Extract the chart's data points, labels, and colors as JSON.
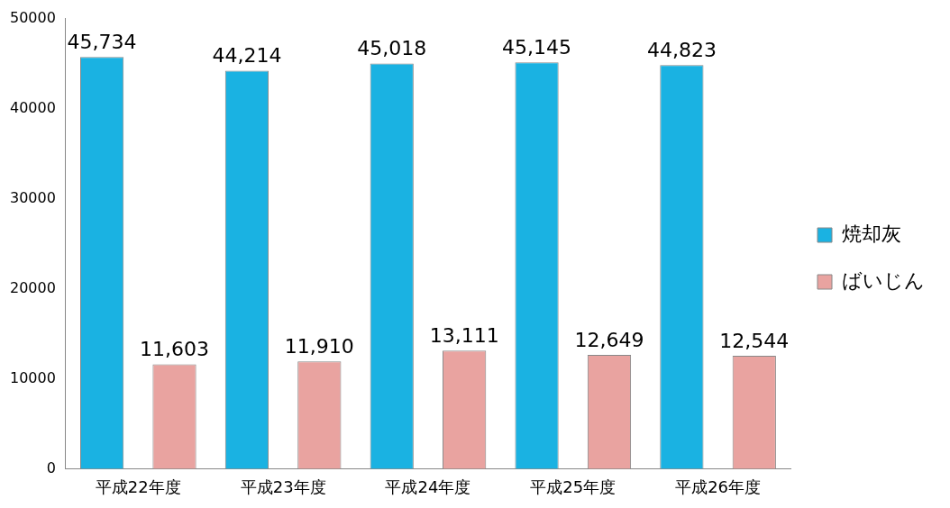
{
  "chart_data": {
    "type": "bar",
    "categories": [
      "平成22年度",
      "平成23年度",
      "平成24年度",
      "平成25年度",
      "平成26年度"
    ],
    "series": [
      {
        "name": "焼却灰",
        "color": "#1ab2e2",
        "values": [
          45734,
          44214,
          45018,
          45145,
          44823
        ],
        "value_labels": [
          "45,734",
          "44,214",
          "45,018",
          "45,145",
          "44,823"
        ]
      },
      {
        "name": "ばいじん",
        "color": "#e9a3a0",
        "values": [
          11603,
          11910,
          13111,
          12649,
          12544
        ],
        "value_labels": [
          "11,603",
          "11,910",
          "13,111",
          "12,649",
          "12,544"
        ]
      }
    ],
    "ylim": [
      0,
      50000
    ],
    "yticks": [
      0,
      10000,
      20000,
      30000,
      40000,
      50000
    ],
    "grid": false,
    "legend": "right"
  }
}
